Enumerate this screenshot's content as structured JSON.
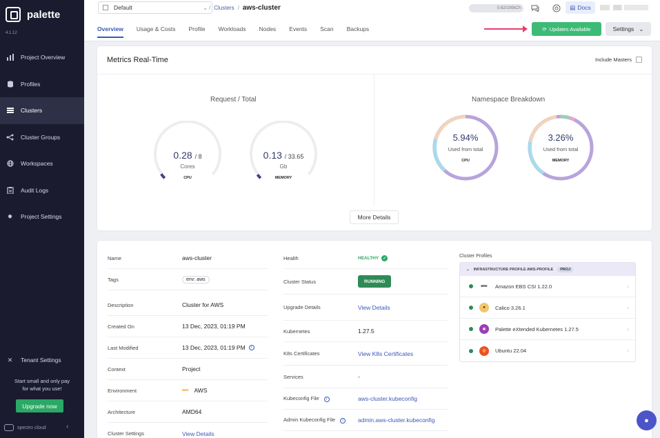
{
  "sidebar": {
    "brand": "palette",
    "version": "4.1.12",
    "items": [
      {
        "label": "Project Overview",
        "icon": "bar-chart-icon"
      },
      {
        "label": "Profiles",
        "icon": "stack-icon"
      },
      {
        "label": "Clusters",
        "icon": "list-icon"
      },
      {
        "label": "Cluster Groups",
        "icon": "network-icon"
      },
      {
        "label": "Workspaces",
        "icon": "globe-icon"
      },
      {
        "label": "Audit Logs",
        "icon": "clipboard-icon"
      },
      {
        "label": "Project Settings",
        "icon": "gear-icon"
      }
    ],
    "tenant_settings": "Tenant Settings",
    "promo_line1": "Start small and only pay",
    "promo_line2": "for what you use!",
    "upgrade_label": "Upgrade now",
    "footer_brand": "spectro cloud"
  },
  "header": {
    "project": "Default",
    "breadcrumb_parent": "Clusters",
    "breadcrumb_current": "aws-cluster",
    "usage": "0.62/100kCh",
    "docs_label": "Docs",
    "tabs": [
      "Overview",
      "Usage & Costs",
      "Profile",
      "Workloads",
      "Nodes",
      "Events",
      "Scan",
      "Backups"
    ],
    "updates_label": "Updates Available",
    "settings_label": "Settings"
  },
  "metrics": {
    "title": "Metrics Real-Time",
    "include_masters": "Include Masters",
    "request_title": "Request / Total",
    "cpu": {
      "value": "0.28",
      "total": "/ 8",
      "unit": "Cores",
      "caption": "CPU",
      "fraction": 0.035
    },
    "memory": {
      "value": "0.13",
      "total": "/ 33.65",
      "unit": "Gb",
      "caption": "MEMORY",
      "fraction": 0.004
    },
    "namespace_title": "Namespace Breakdown",
    "ns_cpu": {
      "value": "5.94%",
      "sub": "Used from total",
      "caption": "CPU"
    },
    "ns_memory": {
      "value": "3.26%",
      "sub": "Used from total",
      "caption": "MEMORY"
    },
    "more_details": "More Details"
  },
  "details": {
    "left": [
      {
        "label": "Name",
        "value": "aws-cluster"
      },
      {
        "label": "Tags",
        "value": "env: aws"
      },
      {
        "label": "Description",
        "value": "Cluster for AWS"
      },
      {
        "label": "Created On",
        "value": "13 Dec, 2023, 01:19 PM"
      },
      {
        "label": "Last Modified",
        "value": "13 Dec, 2023, 01:19 PM"
      },
      {
        "label": "Context",
        "value": "Project"
      },
      {
        "label": "Environment",
        "value": "AWS"
      },
      {
        "label": "Architecture",
        "value": "AMD64"
      },
      {
        "label": "Cluster Settings",
        "value": "View Details"
      }
    ],
    "mid": [
      {
        "label": "Health",
        "value": "HEALTHY"
      },
      {
        "label": "Cluster Status",
        "value": "RUNNING"
      },
      {
        "label": "Upgrade Details",
        "value": "View Details"
      },
      {
        "label": "Kubernetes",
        "value": "1.27.5"
      },
      {
        "label": "K8s Certificates",
        "value": "View K8s Certificates"
      },
      {
        "label": "Services",
        "value": "-"
      },
      {
        "label": "Kubeconfig File",
        "value": "aws-cluster.kubeconfig"
      },
      {
        "label": "Admin Kubeconfig File",
        "value": "admin.aws-cluster.kubeconfig"
      }
    ],
    "aws_mini": "aws",
    "cluster_profiles": {
      "title": "Cluster Profiles",
      "group": "INFRASTRUCTURE PROFILE AWS-PROFILE",
      "badge": "PROJ",
      "items": [
        {
          "name": "Amazon EBS CSI 1.22.0",
          "logo": "aws"
        },
        {
          "name": "Calico 3.26.1",
          "logo": "calico"
        },
        {
          "name": "Palette eXtended Kubernetes 1.27.5",
          "logo": "pxk"
        },
        {
          "name": "Ubuntu 22.04",
          "logo": "ubuntu"
        }
      ]
    }
  }
}
